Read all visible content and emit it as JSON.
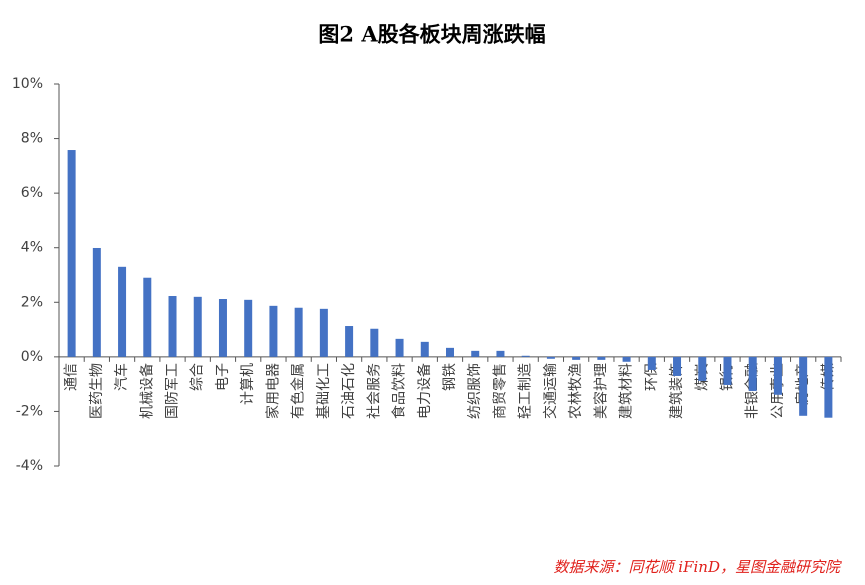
{
  "chart_data": {
    "type": "bar",
    "title": "图2  A股各板块周涨跌幅",
    "source": "数据来源：同花顺 iFinD，星图金融研究院",
    "categories": [
      "通信",
      "医药生物",
      "汽车",
      "机械设备",
      "国防军工",
      "综合",
      "电子",
      "计算机",
      "家用电器",
      "有色金属",
      "基础化工",
      "石油石化",
      "社会服务",
      "食品饮料",
      "电力设备",
      "钢铁",
      "纺织服饰",
      "商贸零售",
      "轻工制造",
      "交通运输",
      "农林牧渔",
      "美容护理",
      "建筑材料",
      "环保",
      "建筑装饰",
      "煤炭",
      "银行",
      "非银金融",
      "公用事业",
      "房地产",
      "传媒"
    ],
    "values": [
      7.58,
      3.99,
      3.3,
      2.9,
      2.23,
      2.2,
      2.12,
      2.09,
      1.87,
      1.8,
      1.76,
      1.13,
      1.03,
      0.66,
      0.55,
      0.33,
      0.22,
      0.22,
      0.04,
      -0.07,
      -0.11,
      -0.11,
      -0.18,
      -0.48,
      -0.7,
      -0.88,
      -1.03,
      -1.25,
      -1.39,
      -2.16,
      -2.23
    ],
    "color": "#4472c4",
    "ylim": [
      -4,
      10
    ],
    "yticks": [
      {
        "value": -4,
        "label": "-4%"
      },
      {
        "value": -2,
        "label": "-2%"
      },
      {
        "value": 0,
        "label": "0%"
      },
      {
        "value": 2,
        "label": "2%"
      },
      {
        "value": 4,
        "label": "4%"
      },
      {
        "value": 6,
        "label": "6%"
      },
      {
        "value": 8,
        "label": "8%"
      },
      {
        "value": 10,
        "label": "10%"
      }
    ],
    "grid": false
  }
}
